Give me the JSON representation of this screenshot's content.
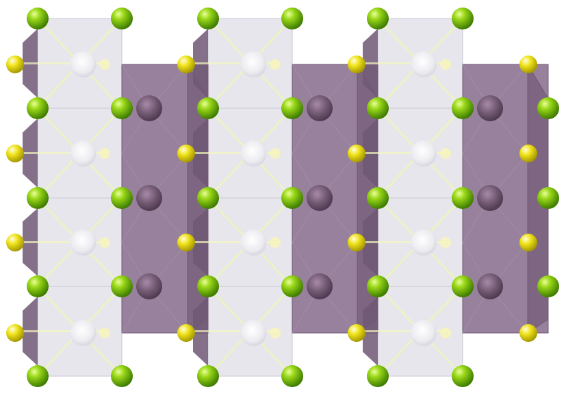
{
  "structure": {
    "polyhedra": {
      "light": {
        "face": "#e4e2ea",
        "edge": "#c9c5d2",
        "center_atom": "#f2f1f5"
      },
      "dark": {
        "face": "#8a6f8f",
        "edge": "#6f5874",
        "center_atom": "#6e566f"
      }
    },
    "atoms": {
      "green": {
        "color": "#7ac70c",
        "highlight": "#d9ff66",
        "shadow": "#3f7d00"
      },
      "yellow": {
        "color": "#e8dc18",
        "highlight": "#fffbb0",
        "shadow": "#a79a00"
      }
    },
    "bond_color": "#e9f7b2"
  }
}
